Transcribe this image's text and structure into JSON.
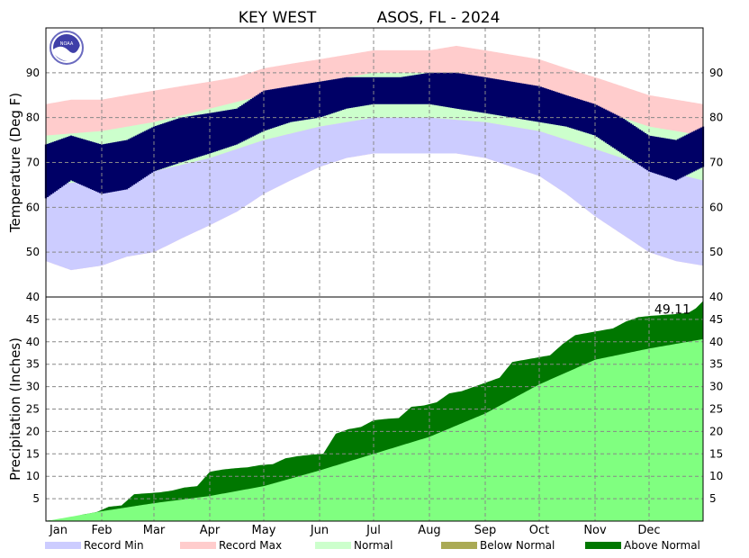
{
  "title": {
    "station": "KEY WEST",
    "network_year": "ASOS, FL - 2024"
  },
  "logo": {
    "text": "NOAA"
  },
  "colors": {
    "record_min": "#ccccff",
    "record_max": "#ffcccc",
    "normal": "#ccffcc",
    "below_normal": "#aaaa55",
    "above_normal": "#007700",
    "normal_precip": "#80ff80",
    "observed": "#000066",
    "grid": "#888888"
  },
  "chart_data": [
    {
      "type": "area",
      "name": "temperature",
      "ylabel": "Temperature (Deg F)",
      "ylim": [
        40,
        100
      ],
      "yticks": [
        50,
        60,
        70,
        80,
        90
      ],
      "grid": true,
      "days": 366,
      "record_min": {
        "x_day": [
          1,
          15,
          32,
          46,
          61,
          76,
          92,
          107,
          122,
          137,
          153,
          168,
          183,
          198,
          214,
          229,
          245,
          260,
          275,
          290,
          306,
          321,
          336,
          351,
          366
        ],
        "values": [
          48,
          46,
          47,
          49,
          50,
          53,
          56,
          59,
          63,
          66,
          69,
          71,
          72,
          72,
          72,
          72,
          71,
          69,
          67,
          63,
          58,
          54,
          50,
          48,
          47
        ]
      },
      "normal_low": {
        "x_day": [
          1,
          32,
          61,
          92,
          122,
          153,
          183,
          214,
          245,
          275,
          306,
          336,
          366
        ],
        "values": [
          65,
          66,
          68,
          71,
          75,
          78,
          80,
          80,
          79,
          77,
          73,
          69,
          66
        ]
      },
      "normal_high": {
        "x_day": [
          1,
          32,
          61,
          92,
          122,
          153,
          183,
          214,
          245,
          275,
          306,
          336,
          366
        ],
        "values": [
          76,
          77,
          79,
          82,
          85,
          88,
          90,
          90,
          89,
          86,
          82,
          78,
          76
        ]
      },
      "record_max": {
        "x_day": [
          1,
          15,
          32,
          46,
          61,
          76,
          92,
          107,
          122,
          137,
          153,
          168,
          183,
          198,
          214,
          229,
          245,
          260,
          275,
          290,
          306,
          321,
          336,
          351,
          366
        ],
        "values": [
          83,
          84,
          84,
          85,
          86,
          87,
          88,
          89,
          91,
          92,
          93,
          94,
          95,
          95,
          95,
          96,
          95,
          94,
          93,
          91,
          89,
          87,
          85,
          84,
          83
        ]
      },
      "observed_low": {
        "x_day": [
          1,
          15,
          32,
          46,
          61,
          76,
          92,
          107,
          122,
          137,
          153,
          168,
          183,
          198,
          214,
          229,
          245,
          260,
          275,
          290,
          306,
          321,
          336,
          351,
          366
        ],
        "values": [
          62,
          66,
          63,
          64,
          68,
          70,
          72,
          74,
          77,
          79,
          80,
          82,
          83,
          83,
          83,
          82,
          81,
          80,
          79,
          78,
          76,
          72,
          68,
          66,
          69
        ]
      },
      "observed_high": {
        "x_day": [
          1,
          15,
          32,
          46,
          61,
          76,
          92,
          107,
          122,
          137,
          153,
          168,
          183,
          198,
          214,
          229,
          245,
          260,
          275,
          290,
          306,
          321,
          336,
          351,
          366
        ],
        "values": [
          74,
          76,
          74,
          75,
          78,
          80,
          81,
          82,
          86,
          87,
          88,
          89,
          89,
          89,
          90,
          90,
          89,
          88,
          87,
          85,
          83,
          80,
          76,
          75,
          78
        ]
      }
    },
    {
      "type": "area",
      "name": "precipitation",
      "ylabel": "Precipitation (Inches)",
      "ylim": [
        0,
        50
      ],
      "yticks": [
        5,
        10,
        15,
        20,
        25,
        30,
        35,
        40,
        45
      ],
      "yticks_top": "40",
      "grid": true,
      "total_label": "49.11",
      "observed_cumulative": {
        "x_day": [
          1,
          8,
          15,
          22,
          29,
          36,
          43,
          50,
          57,
          64,
          71,
          78,
          85,
          92,
          99,
          106,
          113,
          120,
          127,
          134,
          141,
          148,
          155,
          162,
          169,
          176,
          183,
          190,
          197,
          204,
          211,
          218,
          225,
          232,
          239,
          246,
          253,
          260,
          267,
          274,
          281,
          288,
          295,
          302,
          309,
          316,
          323,
          330,
          337,
          344,
          351,
          358,
          362,
          366
        ],
        "values": [
          0.1,
          0.3,
          0.8,
          1.5,
          2.0,
          3.2,
          3.5,
          6.0,
          6.2,
          6.4,
          6.8,
          7.5,
          7.8,
          11.0,
          11.5,
          11.8,
          12.0,
          12.5,
          12.7,
          14.0,
          14.5,
          14.8,
          15.0,
          19.5,
          20.5,
          21.0,
          22.5,
          22.8,
          23.0,
          25.5,
          25.8,
          26.5,
          28.5,
          29.0,
          30.0,
          31.0,
          32.0,
          35.5,
          36.0,
          36.5,
          37.0,
          39.5,
          41.5,
          42.0,
          42.5,
          43.0,
          44.5,
          45.5,
          45.8,
          46.0,
          46.2,
          46.5,
          47.5,
          49.11
        ]
      },
      "normal_cumulative": {
        "x_day": [
          1,
          32,
          61,
          92,
          122,
          153,
          183,
          214,
          245,
          275,
          306,
          336,
          366
        ],
        "values": [
          0,
          2.2,
          4.0,
          5.6,
          7.8,
          11.3,
          15.0,
          18.8,
          24.0,
          30.5,
          36.0,
          38.5,
          40.6
        ]
      }
    }
  ],
  "x_axis": {
    "months": [
      "Jan",
      "Feb",
      "Mar",
      "Apr",
      "May",
      "Jun",
      "Jul",
      "Aug",
      "Sep",
      "Oct",
      "Nov",
      "Dec"
    ],
    "month_start_days": [
      1,
      32,
      61,
      92,
      122,
      153,
      183,
      214,
      245,
      275,
      306,
      336
    ]
  },
  "legend": [
    {
      "key": "record_min",
      "label": "Record Min"
    },
    {
      "key": "record_max",
      "label": "Record Max"
    },
    {
      "key": "normal",
      "label": "Normal"
    },
    {
      "key": "below_normal",
      "label": "Below Normal"
    },
    {
      "key": "above_normal",
      "label": "Above Normal"
    }
  ]
}
